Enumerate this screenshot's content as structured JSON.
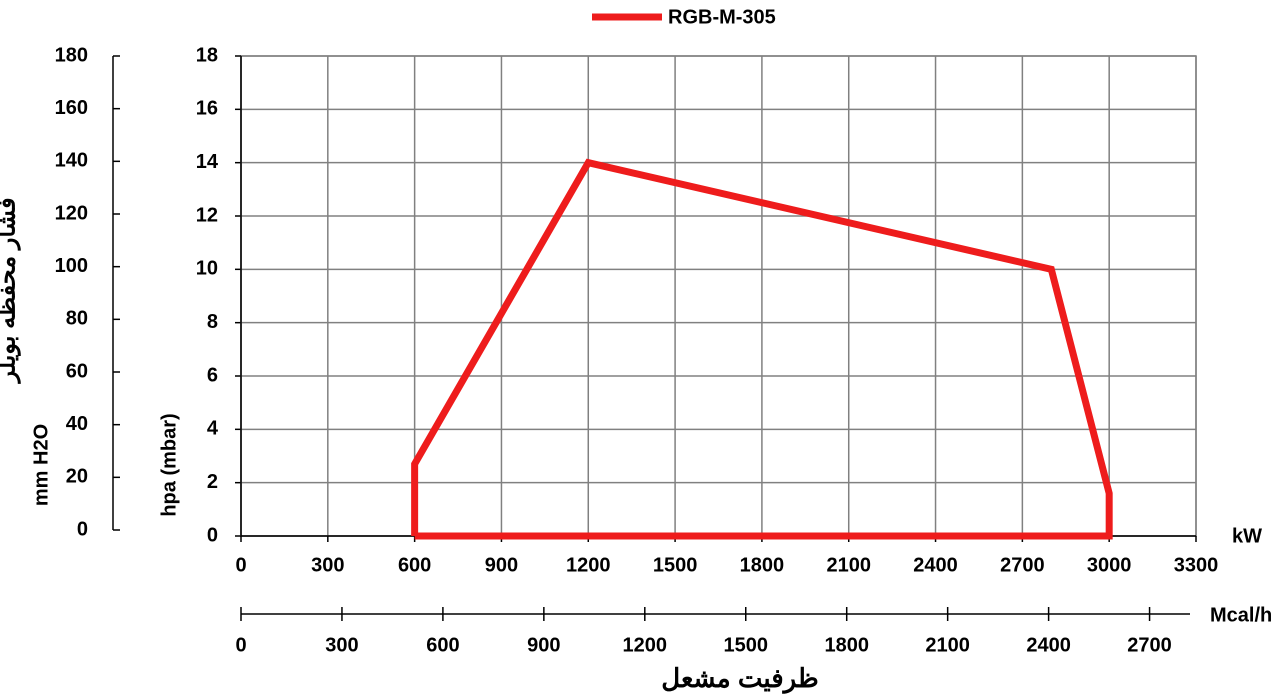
{
  "chart_data": {
    "type": "line",
    "x": [
      600,
      600,
      1200,
      2800,
      3000,
      3000,
      600
    ],
    "series": [
      {
        "name": "RGB-M-305",
        "color": "#ee1c1c",
        "values": [
          0,
          2.7,
          14,
          10,
          1.6,
          0,
          0
        ]
      }
    ],
    "xlim": [
      0,
      3300
    ],
    "xticks": [
      0,
      300,
      600,
      900,
      1200,
      1500,
      1800,
      2100,
      2400,
      2700,
      3000,
      3300
    ],
    "xlabel": "kW",
    "ylim": [
      0,
      18
    ],
    "yticks": [
      0,
      2,
      4,
      6,
      8,
      10,
      12,
      14,
      16,
      18
    ],
    "ylabel": "hpa (mbar)",
    "y2lim": [
      0,
      180
    ],
    "y2ticks": [
      0,
      20,
      40,
      60,
      80,
      100,
      120,
      140,
      160,
      180
    ],
    "y2label": "mm H2O",
    "y2title": "فشار محفظه بویلر",
    "x2lim": [
      0,
      2838
    ],
    "x2ticks": [
      0,
      300,
      600,
      900,
      1200,
      1500,
      1800,
      2100,
      2400,
      2700
    ],
    "x2label": "Mcal/h",
    "x2title": "ظرفیت مشعل",
    "grid": true
  }
}
